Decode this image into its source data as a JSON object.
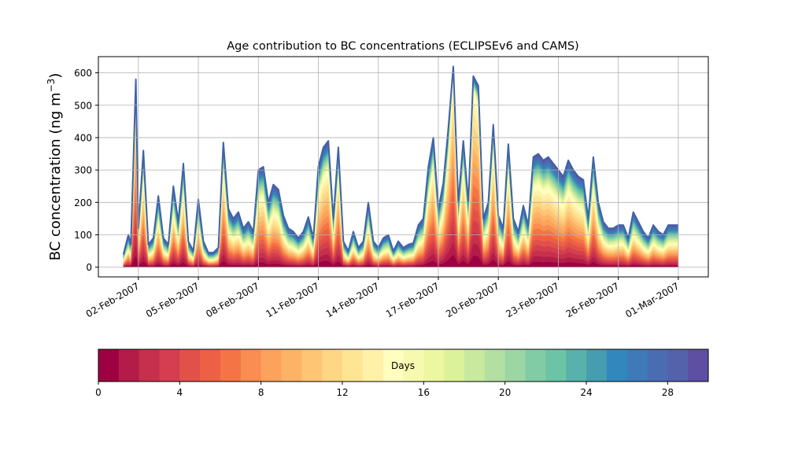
{
  "chart_data": {
    "type": "area",
    "title": "Age contribution to BC concentrations (ECLIPSEv6 and CAMS)",
    "xlabel": "",
    "ylabel": "BC concentration (ng m⁻³)",
    "ylabel_main": "BC concentration (ng m",
    "ylabel_exp": "−3",
    "ylabel_close": ")",
    "xlim": [
      "2007-01-31 00:00",
      "2007-03-02 12:00"
    ],
    "ylim": [
      -30,
      650
    ],
    "grid": true,
    "x_tick_labels": [
      "02-Feb-2007",
      "05-Feb-2007",
      "08-Feb-2007",
      "11-Feb-2007",
      "14-Feb-2007",
      "17-Feb-2007",
      "20-Feb-2007",
      "23-Feb-2007",
      "26-Feb-2007",
      "01-Mar-2007"
    ],
    "x_tick_dates": [
      "2007-02-02",
      "2007-02-05",
      "2007-02-08",
      "2007-02-11",
      "2007-02-14",
      "2007-02-17",
      "2007-02-20",
      "2007-02-23",
      "2007-02-26",
      "2007-03-01"
    ],
    "y_ticks": [
      0,
      100,
      200,
      300,
      400,
      500,
      600
    ],
    "stacked_by": "age (days)",
    "total_series": {
      "x": [
        "2007-02-01 06:00",
        "2007-02-01 12:00",
        "2007-02-01 15:00",
        "2007-02-01 21:00",
        "2007-02-02 00:00",
        "2007-02-02 06:00",
        "2007-02-02 12:00",
        "2007-02-02 18:00",
        "2007-02-03 00:00",
        "2007-02-03 06:00",
        "2007-02-03 12:00",
        "2007-02-03 18:00",
        "2007-02-04 00:00",
        "2007-02-04 06:00",
        "2007-02-04 12:00",
        "2007-02-04 18:00",
        "2007-02-05 00:00",
        "2007-02-05 06:00",
        "2007-02-05 12:00",
        "2007-02-05 18:00",
        "2007-02-06 00:00",
        "2007-02-06 06:00",
        "2007-02-06 12:00",
        "2007-02-06 18:00",
        "2007-02-07 00:00",
        "2007-02-07 06:00",
        "2007-02-07 12:00",
        "2007-02-07 18:00",
        "2007-02-08 00:00",
        "2007-02-08 06:00",
        "2007-02-08 12:00",
        "2007-02-08 18:00",
        "2007-02-09 00:00",
        "2007-02-09 06:00",
        "2007-02-09 12:00",
        "2007-02-09 18:00",
        "2007-02-10 00:00",
        "2007-02-10 06:00",
        "2007-02-10 12:00",
        "2007-02-10 18:00",
        "2007-02-11 00:00",
        "2007-02-11 06:00",
        "2007-02-11 12:00",
        "2007-02-11 18:00",
        "2007-02-12 00:00",
        "2007-02-12 06:00",
        "2007-02-12 12:00",
        "2007-02-12 18:00",
        "2007-02-13 00:00",
        "2007-02-13 06:00",
        "2007-02-13 12:00",
        "2007-02-13 18:00",
        "2007-02-14 00:00",
        "2007-02-14 06:00",
        "2007-02-14 12:00",
        "2007-02-14 18:00",
        "2007-02-15 00:00",
        "2007-02-15 06:00",
        "2007-02-15 12:00",
        "2007-02-15 18:00",
        "2007-02-16 00:00",
        "2007-02-16 06:00",
        "2007-02-16 12:00",
        "2007-02-16 18:00",
        "2007-02-17 00:00",
        "2007-02-17 06:00",
        "2007-02-17 12:00",
        "2007-02-17 18:00",
        "2007-02-18 00:00",
        "2007-02-18 06:00",
        "2007-02-18 12:00",
        "2007-02-18 18:00",
        "2007-02-19 00:00",
        "2007-02-19 06:00",
        "2007-02-19 12:00",
        "2007-02-19 18:00",
        "2007-02-20 00:00",
        "2007-02-20 06:00",
        "2007-02-20 12:00",
        "2007-02-20 18:00",
        "2007-02-21 00:00",
        "2007-02-21 06:00",
        "2007-02-21 12:00",
        "2007-02-21 18:00",
        "2007-02-22 00:00",
        "2007-02-22 06:00",
        "2007-02-22 12:00",
        "2007-02-22 18:00",
        "2007-02-23 00:00",
        "2007-02-23 06:00",
        "2007-02-23 12:00",
        "2007-02-23 18:00",
        "2007-02-24 00:00",
        "2007-02-24 06:00",
        "2007-02-24 12:00",
        "2007-02-24 18:00",
        "2007-02-25 00:00",
        "2007-02-25 06:00",
        "2007-02-25 12:00",
        "2007-02-25 18:00",
        "2007-02-26 00:00",
        "2007-02-26 06:00",
        "2007-02-26 12:00",
        "2007-02-26 18:00",
        "2007-02-27 00:00",
        "2007-02-27 06:00",
        "2007-02-27 12:00",
        "2007-02-27 18:00",
        "2007-02-28 00:00",
        "2007-02-28 06:00",
        "2007-02-28 12:00",
        "2007-02-28 18:00",
        "2007-03-01 00:00"
      ],
      "y": [
        40,
        100,
        70,
        580,
        120,
        360,
        70,
        90,
        220,
        90,
        70,
        250,
        140,
        320,
        80,
        50,
        210,
        80,
        45,
        45,
        60,
        385,
        180,
        150,
        170,
        120,
        140,
        110,
        300,
        310,
        200,
        255,
        240,
        160,
        120,
        110,
        90,
        110,
        155,
        90,
        310,
        370,
        390,
        150,
        370,
        80,
        50,
        110,
        60,
        80,
        200,
        80,
        60,
        90,
        100,
        50,
        80,
        60,
        70,
        75,
        130,
        150,
        310,
        400,
        180,
        260,
        430,
        620,
        200,
        390,
        200,
        590,
        560,
        150,
        200,
        440,
        160,
        120,
        380,
        150,
        110,
        190,
        130,
        340,
        350,
        330,
        340,
        320,
        300,
        280,
        330,
        300,
        280,
        270,
        150,
        340,
        200,
        140,
        120,
        120,
        130,
        130,
        90,
        170,
        140,
        110,
        90,
        130,
        110,
        100,
        130,
        130,
        130
      ]
    },
    "colorbar": {
      "label": "Days",
      "range": [
        0,
        30
      ],
      "ticks": [
        0,
        4,
        8,
        12,
        16,
        20,
        24,
        28
      ],
      "colormap": "Spectral",
      "n_levels": 30,
      "colors": [
        "#9e0142",
        "#b31c48",
        "#c6304d",
        "#d53e4f",
        "#e1514a",
        "#ec6146",
        "#f47446",
        "#f98d52",
        "#fca25c",
        "#fdb365",
        "#fec574",
        "#fed684",
        "#fee593",
        "#fff1a8",
        "#fffebe",
        "#f6fab1",
        "#ecf7a1",
        "#dbf19a",
        "#c8e99e",
        "#b3e0a2",
        "#9bd6a4",
        "#82cca5",
        "#6cc3a5",
        "#58b1aa",
        "#459daf",
        "#3288bd",
        "#3d7ab7",
        "#4a6db1",
        "#5462ab",
        "#5e4fa2"
      ]
    }
  }
}
